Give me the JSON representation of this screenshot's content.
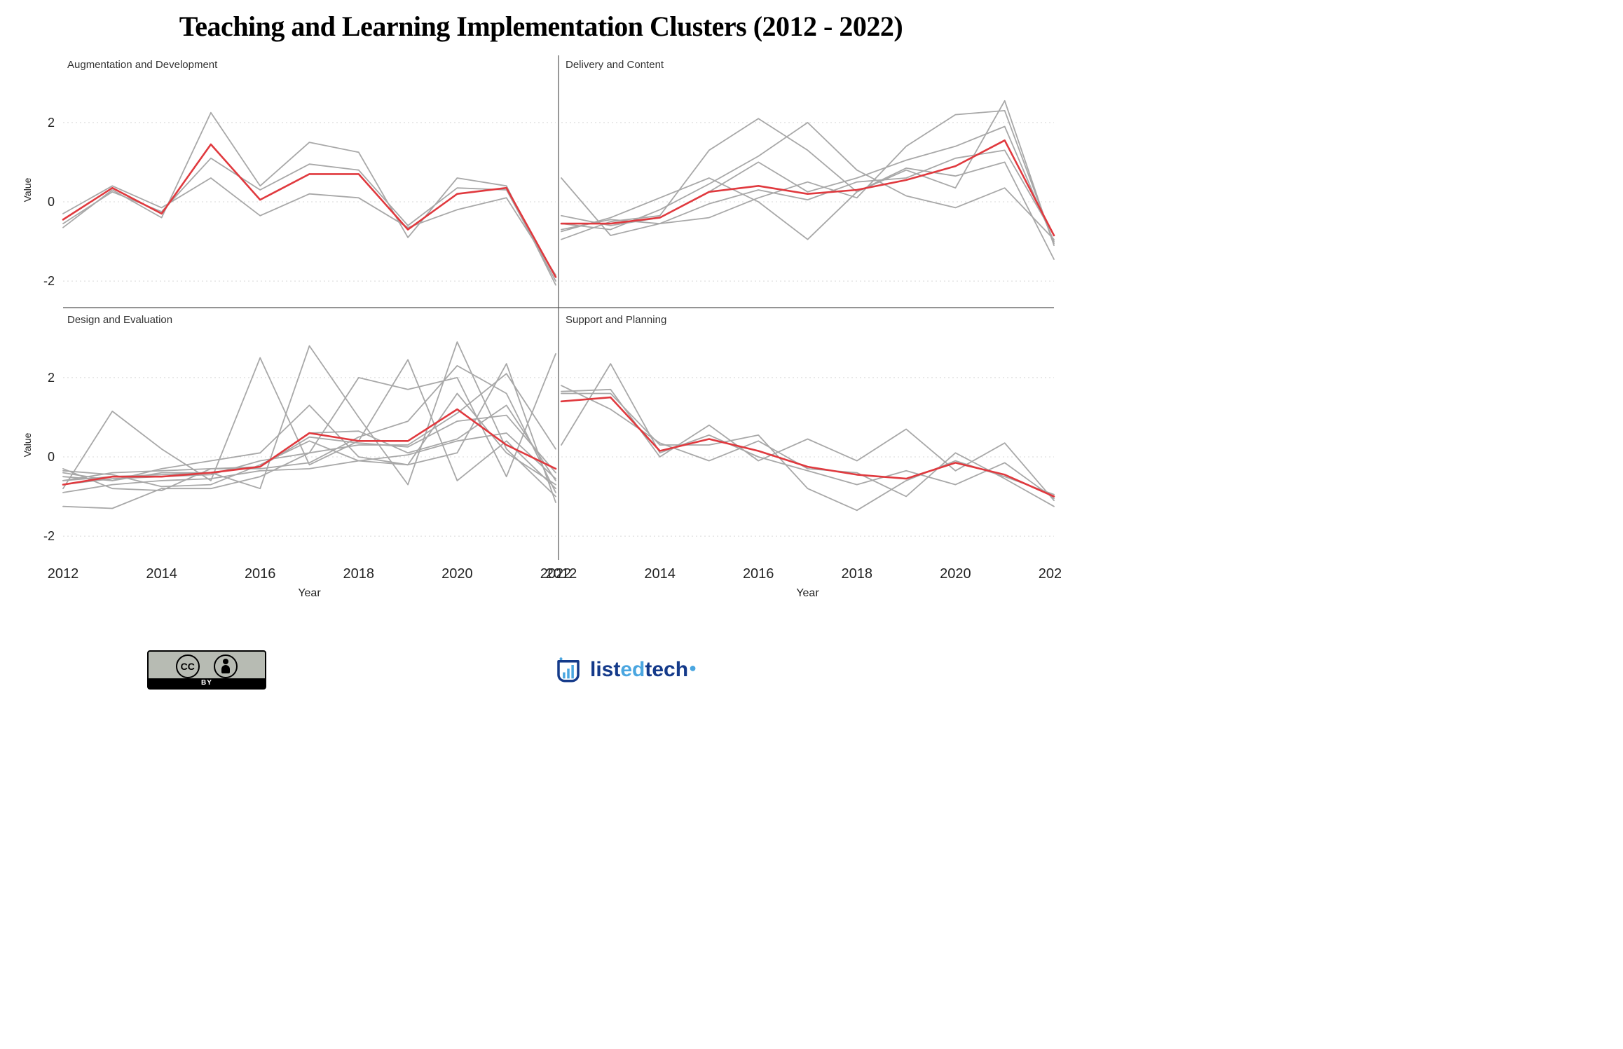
{
  "title": "Teaching and Learning Implementation Clusters (2012 - 2022)",
  "axis": {
    "x_label": "Year",
    "y_label": "Value",
    "x_ticks": [
      2012,
      2014,
      2016,
      2018,
      2020,
      2022
    ],
    "y_ticks": [
      -2,
      0,
      2
    ],
    "x_min": 2012,
    "x_max": 2022,
    "y_min": -2.6,
    "y_max": 3.2
  },
  "colors": {
    "background": "#ffffff",
    "grid": "#d8d8d8",
    "facet_border": "#555555",
    "gray_line": "#a8a8a8",
    "red_line": "#e0393e",
    "tick_text": "#222222",
    "title_text": "#000000"
  },
  "line_widths": {
    "gray": 1.8,
    "red": 2.6
  },
  "x_values": [
    2012,
    2013,
    2014,
    2015,
    2016,
    2017,
    2018,
    2019,
    2020,
    2021,
    2022
  ],
  "panels": [
    {
      "key": "aug",
      "title": "Augmentation and Development",
      "gray_series": [
        [
          -0.65,
          0.3,
          -0.4,
          2.25,
          0.4,
          1.5,
          1.25,
          -0.9,
          0.6,
          0.4,
          -2.1
        ],
        [
          -0.3,
          0.4,
          -0.15,
          0.6,
          -0.35,
          0.2,
          0.1,
          -0.65,
          -0.2,
          0.1,
          -1.85
        ],
        [
          -0.55,
          0.25,
          -0.25,
          1.1,
          0.3,
          0.95,
          0.8,
          -0.6,
          0.35,
          0.3,
          -2.0
        ]
      ],
      "red_series": [
        -0.45,
        0.35,
        -0.3,
        1.45,
        0.05,
        0.7,
        0.7,
        -0.7,
        0.2,
        0.35,
        -1.9
      ]
    },
    {
      "key": "del",
      "title": "Delivery and Content",
      "gray_series": [
        [
          -0.95,
          -0.5,
          -0.35,
          1.3,
          2.1,
          1.3,
          0.25,
          0.8,
          0.35,
          2.55,
          -1.1
        ],
        [
          0.6,
          -0.85,
          -0.55,
          -0.4,
          0.1,
          0.5,
          0.1,
          1.4,
          2.2,
          2.3,
          -1.05
        ],
        [
          -0.75,
          -0.4,
          0.1,
          0.6,
          0.0,
          -0.95,
          0.25,
          0.85,
          0.65,
          1.0,
          -1.45
        ],
        [
          -0.55,
          -0.7,
          -0.2,
          0.45,
          1.15,
          2.0,
          0.8,
          0.15,
          -0.15,
          0.35,
          -0.95
        ],
        [
          -0.35,
          -0.6,
          -0.4,
          0.25,
          1.0,
          0.25,
          0.6,
          1.05,
          1.4,
          1.9,
          -1.0
        ],
        [
          -0.7,
          -0.45,
          -0.55,
          -0.05,
          0.3,
          0.05,
          0.5,
          0.6,
          1.1,
          1.3,
          -0.85
        ]
      ],
      "red_series": [
        -0.55,
        -0.55,
        -0.4,
        0.25,
        0.4,
        0.2,
        0.3,
        0.55,
        0.9,
        1.55,
        -0.85
      ]
    },
    {
      "key": "des",
      "title": "Design and Evaluation",
      "gray_series": [
        [
          -0.8,
          1.15,
          0.2,
          -0.6,
          2.5,
          -0.2,
          0.4,
          2.45,
          -0.6,
          0.4,
          -0.8
        ],
        [
          -0.4,
          -0.6,
          -0.4,
          -0.4,
          -0.8,
          2.8,
          1.0,
          -0.7,
          2.9,
          0.2,
          -1.0
        ],
        [
          -1.25,
          -1.3,
          -0.8,
          -0.8,
          -0.5,
          0.1,
          2.0,
          1.7,
          2.0,
          -0.5,
          2.6
        ],
        [
          -0.35,
          -0.45,
          -0.75,
          -0.7,
          -0.2,
          0.4,
          -0.1,
          -0.2,
          0.1,
          2.35,
          -1.15
        ],
        [
          -0.7,
          -0.55,
          -0.5,
          -0.45,
          -0.1,
          0.1,
          0.3,
          0.3,
          1.1,
          2.1,
          0.2
        ],
        [
          -0.6,
          -0.4,
          -0.35,
          -0.3,
          -0.25,
          0.6,
          0.65,
          0.1,
          0.45,
          1.3,
          -0.6
        ],
        [
          -0.3,
          -0.8,
          -0.85,
          -0.3,
          -0.3,
          -0.15,
          0.5,
          0.9,
          2.3,
          1.6,
          -0.9
        ],
        [
          -0.9,
          -0.7,
          -0.6,
          -0.55,
          -0.35,
          -0.3,
          -0.1,
          0.05,
          0.4,
          0.6,
          -0.55
        ],
        [
          -0.5,
          -0.6,
          -0.3,
          -0.1,
          0.1,
          1.3,
          0.0,
          -0.2,
          1.6,
          0.1,
          -0.7
        ],
        [
          -0.6,
          -0.5,
          -0.45,
          -0.4,
          -0.25,
          0.5,
          0.35,
          0.25,
          0.9,
          1.05,
          -0.4
        ]
      ],
      "red_series": [
        -0.7,
        -0.5,
        -0.5,
        -0.4,
        -0.25,
        0.6,
        0.4,
        0.4,
        1.2,
        0.3,
        -0.3
      ]
    },
    {
      "key": "sup",
      "title": "Support and Planning",
      "gray_series": [
        [
          1.65,
          1.7,
          0.0,
          0.8,
          -0.1,
          0.45,
          -0.1,
          0.7,
          -0.35,
          0.35,
          -1.1
        ],
        [
          1.8,
          1.2,
          0.35,
          -0.1,
          0.4,
          -0.3,
          -0.4,
          -1.0,
          0.1,
          -0.55,
          -1.25
        ],
        [
          0.3,
          2.35,
          0.1,
          0.55,
          0.0,
          -0.35,
          -0.7,
          -0.35,
          -0.7,
          -0.15,
          -1.05
        ],
        [
          1.6,
          1.6,
          0.3,
          0.3,
          0.55,
          -0.8,
          -1.35,
          -0.6,
          -0.1,
          -0.5,
          -0.95
        ]
      ],
      "red_series": [
        1.4,
        1.5,
        0.15,
        0.45,
        0.15,
        -0.25,
        -0.45,
        -0.55,
        -0.15,
        -0.45,
        -1.0
      ]
    }
  ],
  "cc": {
    "cc_text": "CC",
    "by_text": "BY"
  },
  "brand": {
    "list": "list",
    "ed": "ed",
    "tech": "tech"
  }
}
